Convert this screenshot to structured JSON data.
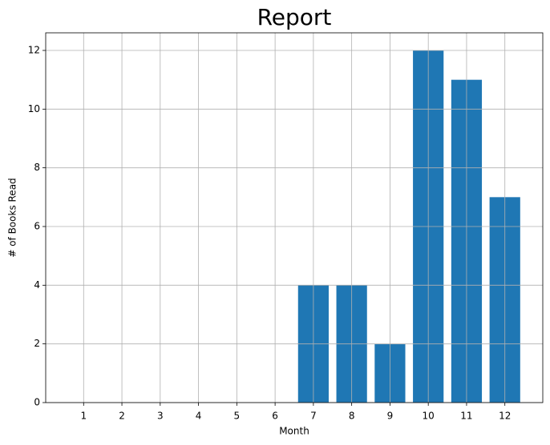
{
  "chart_data": {
    "type": "bar",
    "title": "Report",
    "x_label": "Month",
    "y_label": "# of Books Read",
    "x": [
      1,
      2,
      3,
      4,
      5,
      6,
      7,
      8,
      9,
      10,
      11,
      12
    ],
    "values": [
      0,
      0,
      0,
      0,
      0,
      0,
      4,
      4,
      2,
      12,
      11,
      7
    ],
    "color": "#1f77b4",
    "xlim": [
      0.01,
      12.99
    ],
    "xticks": [
      1,
      2,
      3,
      4,
      5,
      6,
      7,
      8,
      9,
      10,
      11,
      12
    ],
    "ylim": [
      0,
      12.6
    ],
    "yticks": [
      0,
      2,
      4,
      6,
      8,
      10,
      12
    ],
    "grid": true
  }
}
